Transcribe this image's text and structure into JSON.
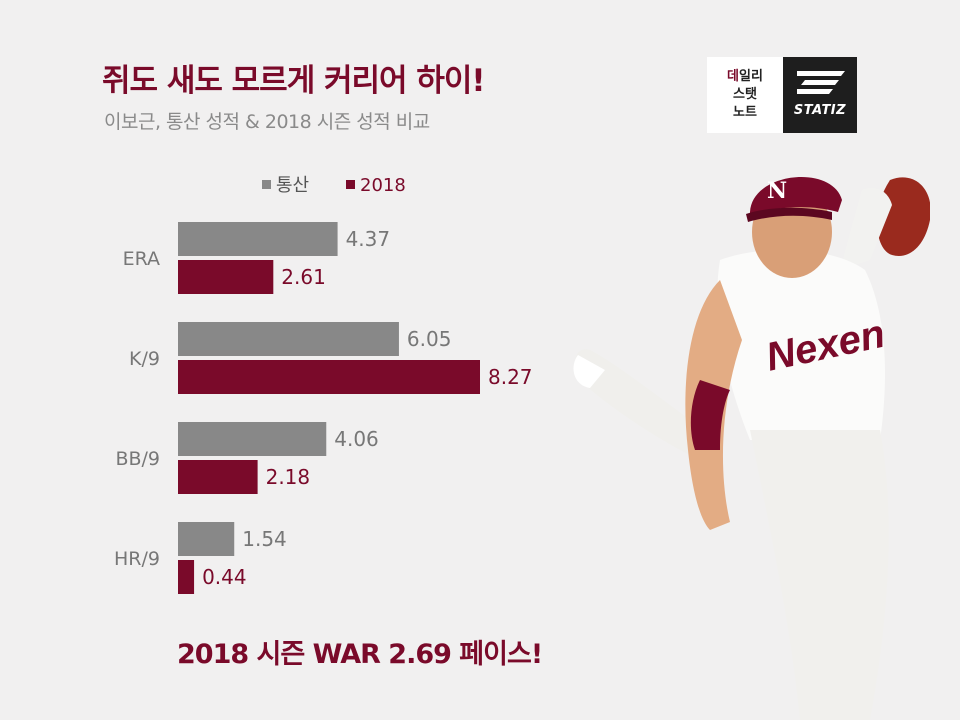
{
  "title": "쥐도 새도 모르게 커리어 하이!",
  "subtitle": "이보근, 통산 성적 & 2018 시즌 성적 비교",
  "footer": "2018 시즌 WAR 2.69 페이스!",
  "logo": {
    "line1_accent": "데",
    "line1_rest": "일리",
    "line2": "스탯",
    "line3": "노트",
    "brand": "STATIZ"
  },
  "player_jersey_text": "Nexen",
  "colors": {
    "career": "#888888",
    "season": "#7a0a2a",
    "background": "#f1f0f0"
  },
  "chart_data": {
    "type": "bar",
    "orientation": "horizontal",
    "categories": [
      "ERA",
      "K/9",
      "BB/9",
      "HR/9"
    ],
    "series": [
      {
        "name": "통산",
        "values": [
          4.37,
          6.05,
          4.06,
          1.54
        ]
      },
      {
        "name": "2018",
        "values": [
          2.61,
          8.27,
          2.18,
          0.44
        ]
      }
    ],
    "value_labels": [
      [
        "4.37",
        "6.05",
        "4.06",
        "1.54"
      ],
      [
        "2.61",
        "8.27",
        "2.18",
        "0.44"
      ]
    ],
    "legend_position": "top",
    "grid": false,
    "xlim": [
      0,
      8.27
    ]
  }
}
